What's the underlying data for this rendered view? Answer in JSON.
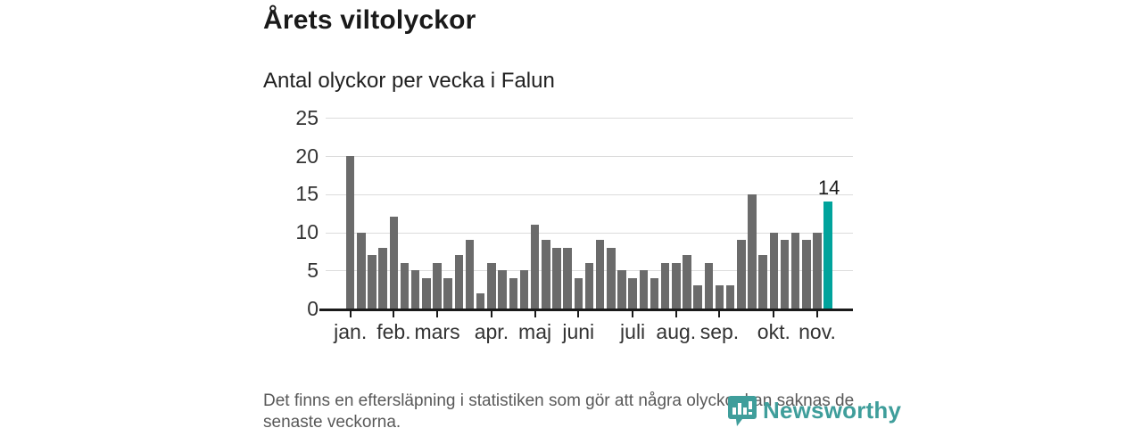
{
  "header": {
    "title": "Årets viltolyckor",
    "subtitle": "Antal olyckor per vecka i Falun"
  },
  "chart_data": {
    "type": "bar",
    "title": "Årets viltolyckor",
    "subtitle": "Antal olyckor per vecka i Falun",
    "x_unit": "week",
    "weeks": {
      "start": 1,
      "end": 45
    },
    "values": [
      20,
      10,
      7,
      8,
      12,
      6,
      5,
      4,
      6,
      4,
      7,
      9,
      2,
      6,
      5,
      4,
      5,
      11,
      9,
      8,
      8,
      4,
      6,
      9,
      8,
      5,
      4,
      5,
      4,
      6,
      6,
      7,
      3,
      6,
      3,
      3,
      9,
      15,
      7,
      10,
      9,
      10,
      9,
      10,
      14
    ],
    "highlight": {
      "week": 45,
      "value": 14,
      "label": "14",
      "color": "#00a39c"
    },
    "bar_color": "#6b6b6b",
    "ylim": [
      0,
      25
    ],
    "yticks": [
      0,
      5,
      10,
      15,
      20,
      25
    ],
    "grid": true,
    "legend": "none",
    "month_ticks": [
      {
        "week": 1,
        "label": "jan."
      },
      {
        "week": 5,
        "label": "feb."
      },
      {
        "week": 9,
        "label": "mars"
      },
      {
        "week": 14,
        "label": "apr."
      },
      {
        "week": 18,
        "label": "maj"
      },
      {
        "week": 22,
        "label": "juni"
      },
      {
        "week": 27,
        "label": "juli"
      },
      {
        "week": 31,
        "label": "aug."
      },
      {
        "week": 35,
        "label": "sep."
      },
      {
        "week": 40,
        "label": "okt."
      },
      {
        "week": 44,
        "label": "nov."
      }
    ]
  },
  "footer": {
    "note": "Det finns en eftersläpning i statistiken som gör att några olyckor kan saknas de senaste veckorna.",
    "brand": "Newsworthy",
    "brand_color": "#3f9e9b",
    "text_color": "#595959"
  }
}
